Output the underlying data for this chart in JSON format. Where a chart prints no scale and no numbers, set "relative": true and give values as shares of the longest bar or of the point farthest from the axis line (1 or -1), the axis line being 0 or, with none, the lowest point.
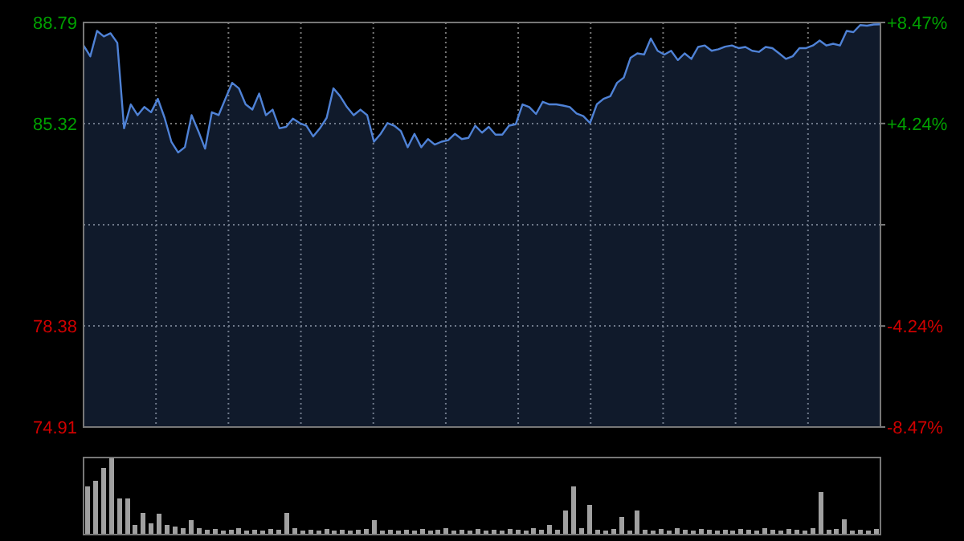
{
  "chart_data": [
    {
      "type": "area",
      "categories": [
        null,
        null,
        null,
        null,
        null,
        null,
        null,
        null,
        null,
        null,
        null,
        null,
        null,
        null,
        null,
        null,
        null,
        null,
        null,
        null,
        null,
        null,
        null,
        null,
        null,
        null,
        null,
        null,
        null,
        null,
        null,
        null,
        null,
        null,
        null,
        null,
        null,
        null,
        null,
        null,
        null,
        null,
        null,
        null,
        null,
        null,
        null,
        null,
        null,
        null,
        null,
        null,
        null,
        null,
        null,
        null,
        null,
        null,
        null,
        null,
        null,
        null,
        null,
        null,
        null,
        null,
        null,
        null,
        null,
        null,
        null,
        null,
        null,
        null,
        null,
        null,
        null,
        null,
        null,
        null,
        null,
        null,
        null,
        null,
        null,
        null,
        null,
        null,
        null,
        null,
        null,
        null,
        null,
        null,
        null,
        null,
        null,
        null,
        null,
        null,
        null,
        null,
        null,
        null,
        null,
        null,
        null,
        null,
        null,
        null,
        null,
        null,
        null,
        null,
        null,
        null,
        null,
        null,
        null
      ],
      "values": [
        88.0,
        87.63,
        88.5,
        88.31,
        88.42,
        88.09,
        85.16,
        85.98,
        85.61,
        85.89,
        85.71,
        86.17,
        85.52,
        84.7,
        84.33,
        84.51,
        85.61,
        85.06,
        84.46,
        85.71,
        85.61,
        86.17,
        86.72,
        86.53,
        85.98,
        85.8,
        86.35,
        85.61,
        85.8,
        85.16,
        85.21,
        85.49,
        85.34,
        85.25,
        84.88,
        85.16,
        85.52,
        86.53,
        86.26,
        85.89,
        85.61,
        85.8,
        85.61,
        84.7,
        84.97,
        85.34,
        85.25,
        85.06,
        84.51,
        84.97,
        84.51,
        84.79,
        84.6,
        84.7,
        84.75,
        84.97,
        84.79,
        84.83,
        85.25,
        85.01,
        85.21,
        84.94,
        84.94,
        85.25,
        85.3,
        85.98,
        85.89,
        85.65,
        86.07,
        85.98,
        85.98,
        85.94,
        85.89,
        85.67,
        85.58,
        85.34,
        85.98,
        86.17,
        86.26,
        86.72,
        86.9,
        87.58,
        87.73,
        87.69,
        88.24,
        87.82,
        87.69,
        87.82,
        87.5,
        87.73,
        87.54,
        87.95,
        88.0,
        87.82,
        87.87,
        87.96,
        88.0,
        87.91,
        87.95,
        87.82,
        87.78,
        87.95,
        87.91,
        87.73,
        87.54,
        87.63,
        87.91,
        87.91,
        88.0,
        88.17,
        88.0,
        88.06,
        88.0,
        88.5,
        88.46,
        88.7,
        88.68,
        88.72,
        88.73
      ],
      "color": "#4f82d6",
      "ylim": [
        74.91,
        88.79
      ],
      "yticks": [
        74.91,
        78.38,
        {
          "value": 81.85,
          "label": null
        },
        85.32,
        88.79
      ],
      "y2lim": [
        -8.47,
        8.47
      ],
      "y2ticks": [
        {
          "value": -8.47,
          "label": "-8.47%"
        },
        {
          "value": -4.24,
          "label": "-4.24%"
        },
        {
          "value": 0,
          "label": null
        },
        {
          "value": 4.24,
          "label": "+4.24%"
        },
        {
          "value": 8.47,
          "label": "+8.47%"
        }
      ],
      "grid": true
    },
    {
      "type": "bar",
      "relative": true,
      "categories": [
        null,
        null,
        null,
        null,
        null,
        null,
        null,
        null,
        null,
        null,
        null,
        null,
        null,
        null,
        null,
        null,
        null,
        null,
        null,
        null,
        null,
        null,
        null,
        null,
        null,
        null,
        null,
        null,
        null,
        null,
        null,
        null,
        null,
        null,
        null,
        null,
        null,
        null,
        null,
        null,
        null,
        null,
        null,
        null,
        null,
        null,
        null,
        null,
        null,
        null,
        null,
        null,
        null,
        null,
        null,
        null,
        null,
        null,
        null,
        null,
        null,
        null,
        null,
        null,
        null,
        null,
        null,
        null,
        null,
        null,
        null,
        null,
        null,
        null,
        null,
        null,
        null,
        null,
        null,
        null,
        null,
        null,
        null,
        null,
        null,
        null,
        null,
        null,
        null,
        null,
        null,
        null,
        null,
        null,
        null,
        null,
        null,
        null,
        null,
        null
      ],
      "values": [
        0.62,
        0.7,
        0.86,
        1.0,
        0.47,
        0.47,
        0.12,
        0.28,
        0.15,
        0.27,
        0.12,
        0.1,
        0.08,
        0.19,
        0.08,
        0.06,
        0.07,
        0.05,
        0.06,
        0.08,
        0.05,
        0.06,
        0.05,
        0.07,
        0.06,
        0.28,
        0.08,
        0.05,
        0.06,
        0.05,
        0.07,
        0.05,
        0.06,
        0.05,
        0.06,
        0.07,
        0.19,
        0.05,
        0.06,
        0.05,
        0.06,
        0.05,
        0.07,
        0.05,
        0.06,
        0.08,
        0.05,
        0.06,
        0.05,
        0.07,
        0.05,
        0.06,
        0.05,
        0.07,
        0.06,
        0.05,
        0.08,
        0.06,
        0.12,
        0.06,
        0.31,
        0.62,
        0.08,
        0.39,
        0.06,
        0.05,
        0.07,
        0.23,
        0.05,
        0.31,
        0.06,
        0.05,
        0.07,
        0.05,
        0.08,
        0.06,
        0.05,
        0.07,
        0.06,
        0.05,
        0.06,
        0.05,
        0.07,
        0.06,
        0.05,
        0.08,
        0.06,
        0.05,
        0.07,
        0.06,
        0.05,
        0.08,
        0.55,
        0.06,
        0.07,
        0.2,
        0.05,
        0.06,
        0.05,
        0.07
      ],
      "color": "#a0a0a0"
    }
  ]
}
